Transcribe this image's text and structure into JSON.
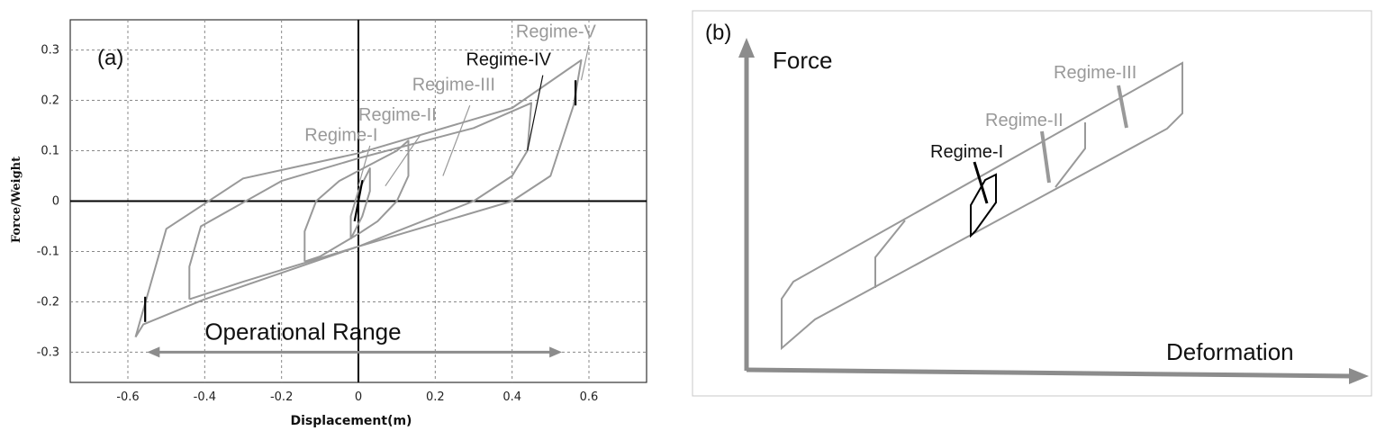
{
  "chart_data": [
    {
      "panel": "(a)",
      "type": "line",
      "xlabel": "Displacement(m)",
      "ylabel": "Force/Weight",
      "xlim": [
        -0.75,
        0.75
      ],
      "ylim": [
        -0.36,
        0.36
      ],
      "xticks": [
        "-0.6",
        "-0.4",
        "-0.2",
        "0",
        "0.2",
        "0.4",
        "0.6"
      ],
      "xtick_values": [
        -0.6,
        -0.4,
        -0.2,
        0,
        0.2,
        0.4,
        0.6
      ],
      "yticks": [
        "0.3",
        "0.2",
        "0.1",
        "0",
        "-0.1",
        "-0.2",
        "-0.3"
      ],
      "ytick_values": [
        0.3,
        0.2,
        0.1,
        0,
        -0.1,
        -0.2,
        -0.3
      ],
      "grid": "dashed",
      "annotation": "Operational Range",
      "operational_range": [
        -0.55,
        0.53
      ],
      "operational_range_y": -0.3,
      "series": [
        {
          "color": "#999999",
          "points": [
            [
              -0.58,
              -0.27
            ],
            [
              -0.5,
              -0.055
            ],
            [
              -0.3,
              0.045
            ],
            [
              0.0,
              0.095
            ],
            [
              0.4,
              0.185
            ],
            [
              0.58,
              0.28
            ],
            [
              0.56,
              0.19
            ],
            [
              0.5,
              0.05
            ],
            [
              0.4,
              0.0
            ],
            [
              0.0,
              -0.09
            ],
            [
              -0.4,
              -0.195
            ],
            [
              -0.56,
              -0.245
            ],
            [
              -0.58,
              -0.27
            ]
          ]
        },
        {
          "color": "#999999",
          "points": [
            [
              -0.44,
              -0.195
            ],
            [
              -0.44,
              -0.13
            ],
            [
              -0.41,
              -0.05
            ],
            [
              -0.2,
              0.04
            ],
            [
              0.0,
              0.085
            ],
            [
              0.3,
              0.145
            ],
            [
              0.45,
              0.195
            ],
            [
              0.44,
              0.1
            ],
            [
              0.4,
              0.05
            ],
            [
              0.3,
              0.0
            ],
            [
              0.0,
              -0.09
            ],
            [
              -0.3,
              -0.16
            ],
            [
              -0.44,
              -0.195
            ]
          ]
        },
        {
          "color": "#999999",
          "points": [
            [
              -0.14,
              -0.12
            ],
            [
              -0.14,
              -0.06
            ],
            [
              -0.11,
              0.0
            ],
            [
              -0.05,
              0.04
            ],
            [
              0.0,
              0.06
            ],
            [
              0.1,
              0.1
            ],
            [
              0.13,
              0.12
            ],
            [
              0.13,
              0.05
            ],
            [
              0.1,
              0.0
            ],
            [
              0.05,
              -0.04
            ],
            [
              0.0,
              -0.065
            ],
            [
              -0.1,
              -0.11
            ],
            [
              -0.14,
              -0.12
            ]
          ]
        },
        {
          "color": "#999999",
          "points": [
            [
              -0.02,
              -0.075
            ],
            [
              -0.02,
              -0.03
            ],
            [
              0.0,
              0.02
            ],
            [
              0.03,
              0.065
            ],
            [
              0.03,
              0.02
            ],
            [
              0.01,
              -0.03
            ],
            [
              -0.02,
              -0.075
            ]
          ]
        },
        {
          "color": "#000000",
          "points": [
            [
              -0.01,
              -0.04
            ],
            [
              0.0,
              0.0
            ],
            [
              0.01,
              0.04
            ],
            [
              0.0,
              0.0
            ],
            [
              -0.01,
              -0.04
            ]
          ]
        },
        {
          "color": "#000000",
          "points": [
            [
              0.565,
              0.19
            ],
            [
              0.565,
              0.24
            ]
          ]
        },
        {
          "color": "#000000",
          "points": [
            [
              -0.555,
              -0.24
            ],
            [
              -0.555,
              -0.19
            ]
          ]
        }
      ],
      "labels": [
        {
          "text": "Regime-V",
          "color": "#999999",
          "x": 0.41,
          "y": 0.325,
          "lx": 0.6,
          "ly": 0.31,
          "px": 0.58,
          "py": 0.24
        },
        {
          "text": "Regime-IV",
          "color": "#111111",
          "x": 0.28,
          "y": 0.27,
          "lx": 0.48,
          "ly": 0.25,
          "px": 0.44,
          "py": 0.1
        },
        {
          "text": "Regime-III",
          "color": "#999999",
          "x": 0.14,
          "y": 0.22,
          "lx": 0.29,
          "ly": 0.19,
          "px": 0.22,
          "py": 0.05
        },
        {
          "text": "Regime-II",
          "color": "#999999",
          "x": 0.0,
          "y": 0.16,
          "lx": 0.16,
          "ly": 0.13,
          "px": 0.07,
          "py": 0.03
        },
        {
          "text": "Regime-I",
          "color": "#999999",
          "x": -0.14,
          "y": 0.12,
          "lx": 0.03,
          "ly": 0.11,
          "px": 0.0,
          "py": 0.03
        }
      ]
    },
    {
      "panel": "(b)",
      "type": "diagram",
      "xlabel": "Deformation",
      "ylabel": "Force",
      "labels": [
        "Regime-III",
        "Regime-II",
        "Regime-I"
      ]
    }
  ],
  "colors": {
    "gray": "#999999",
    "dark": "#111111",
    "arrow": "#8c8c8c"
  }
}
